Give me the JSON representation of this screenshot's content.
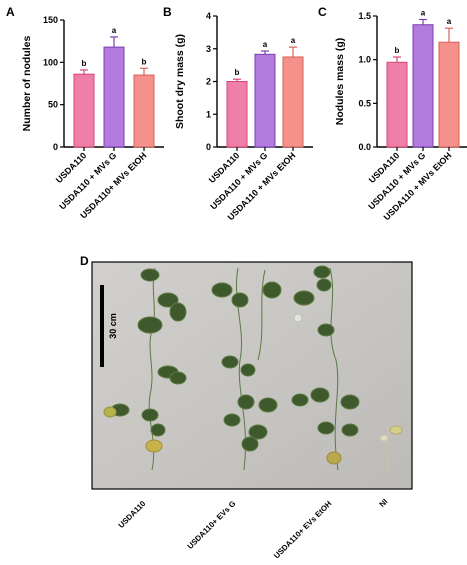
{
  "chart_data": [
    {
      "panel": "A",
      "type": "bar",
      "ylabel": "Number of nodules",
      "ylim": [
        0,
        150
      ],
      "yticks": [
        0,
        50,
        100,
        150
      ],
      "categories": [
        "USDA110",
        "USDA110 + MVs G",
        "USDA110+ MVs EtOH"
      ],
      "values": [
        86,
        118,
        85
      ],
      "errors": [
        5,
        12,
        8
      ],
      "significance": [
        "b",
        "a",
        "b"
      ],
      "colors": [
        "#f07fa8",
        "#b37bdf",
        "#f4918a"
      ]
    },
    {
      "panel": "B",
      "type": "bar",
      "ylabel": "Shoot dry mass (g)",
      "ylim": [
        0,
        4
      ],
      "yticks": [
        0,
        1,
        2,
        3,
        4
      ],
      "categories": [
        "USDA110",
        "USDA110 + MVs G",
        "USDA110 + MVs EtOH"
      ],
      "values": [
        2.0,
        2.83,
        2.75
      ],
      "errors": [
        0.07,
        0.1,
        0.3
      ],
      "significance": [
        "b",
        "a",
        "a"
      ],
      "colors": [
        "#f07fa8",
        "#b37bdf",
        "#f4918a"
      ]
    },
    {
      "panel": "C",
      "type": "bar",
      "ylabel": "Nodules mass (g)",
      "ylim": [
        0,
        1.5
      ],
      "yticks": [
        "0.0",
        "0.5",
        "1.0",
        "1.5"
      ],
      "categories": [
        "USDA110",
        "USDA110 + MVs G",
        "USDA110 + MVs EtOH"
      ],
      "values": [
        0.97,
        1.4,
        1.2
      ],
      "errors": [
        0.06,
        0.06,
        0.16
      ],
      "significance": [
        "b",
        "a",
        "a"
      ],
      "colors": [
        "#f07fa8",
        "#b37bdf",
        "#f4918a"
      ]
    }
  ],
  "photo": {
    "panel": "D",
    "scale_bar": "30 cm",
    "labels": [
      "USDA110",
      "USDA110+ EVs G",
      "USDA110+ EVs EtOH",
      "NI"
    ]
  },
  "colors": {
    "bar_outline_pink": "#d6457a",
    "bar_outline_purple": "#7a3fb0",
    "bar_outline_salmon": "#d9605a",
    "photo_background": "#c9c7c4"
  }
}
